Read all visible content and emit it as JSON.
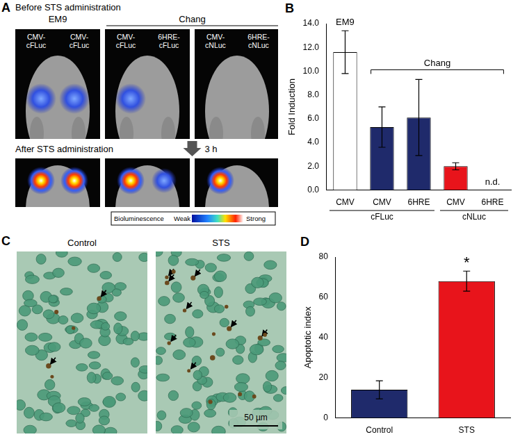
{
  "figure": {
    "panel_a": {
      "letter": "A",
      "before_title": "Before STS administration",
      "after_title": "After STS administration",
      "interval": "3 h",
      "groups": [
        {
          "name": "EM9",
          "columns": [
            [
              "CMV-cFLuc",
              "CMV-cFLuc"
            ]
          ]
        },
        {
          "name": "Chang",
          "columns": [
            [
              "CMV-cFLuc",
              "6HRE-cFLuc"
            ],
            [
              "CMV-cNLuc",
              "6HRE-cNLuc"
            ]
          ]
        }
      ],
      "color_bar": {
        "title": "Bioluminescence",
        "low": "Weak",
        "high": "Strong"
      }
    },
    "panel_b": {
      "letter": "B"
    },
    "panel_c": {
      "letter": "C",
      "images": [
        {
          "title": "Control"
        },
        {
          "title": "STS"
        }
      ],
      "scale_bar": "50 µm"
    },
    "panel_d": {
      "letter": "D"
    }
  },
  "chart_data": [
    {
      "type": "bar",
      "y_label": "Fold Induction",
      "categories": [
        "CMV",
        "CMV",
        "6HRE",
        "CMV",
        "6HRE"
      ],
      "category_groups": [
        {
          "label": "cFLuc",
          "count": 3
        },
        {
          "label": "cNLuc",
          "count": 2
        }
      ],
      "values": [
        11.6,
        5.3,
        6.1,
        2.0,
        null
      ],
      "errors": [
        1.8,
        1.7,
        3.2,
        0.3,
        null
      ],
      "colors": [
        "#ffffff",
        "#1f2a6b",
        "#1f2a6b",
        "#e8141b",
        "#e8141b"
      ],
      "ylim": [
        0,
        14
      ],
      "yticks": [
        {
          "value": 0,
          "label": "0.0"
        },
        {
          "value": 2,
          "label": "2.0"
        },
        {
          "value": 4,
          "label": "4.0"
        },
        {
          "value": 6,
          "label": "6.0"
        },
        {
          "value": 8,
          "label": "8.0"
        },
        {
          "value": 10,
          "label": "10.0"
        },
        {
          "value": 12,
          "label": "12.0"
        },
        {
          "value": 14,
          "label": "14.0"
        }
      ],
      "grid": false,
      "annotations": [
        {
          "text": "EM9",
          "category": 0
        },
        {
          "text": "Chang",
          "from": 1,
          "to": 4
        },
        {
          "text": "n.d.",
          "category": 4
        }
      ]
    },
    {
      "type": "bar",
      "y_label": "Apoptotic index",
      "categories": [
        "Control",
        "STS"
      ],
      "values": [
        14,
        68
      ],
      "errors": [
        4.5,
        5
      ],
      "colors": [
        "#1f2a6b",
        "#e8141b"
      ],
      "ylim": [
        0,
        80
      ],
      "yticks": [
        0,
        20,
        40,
        60,
        80
      ],
      "grid": false,
      "annotations": [
        {
          "text": "*",
          "category": 1
        }
      ]
    }
  ]
}
